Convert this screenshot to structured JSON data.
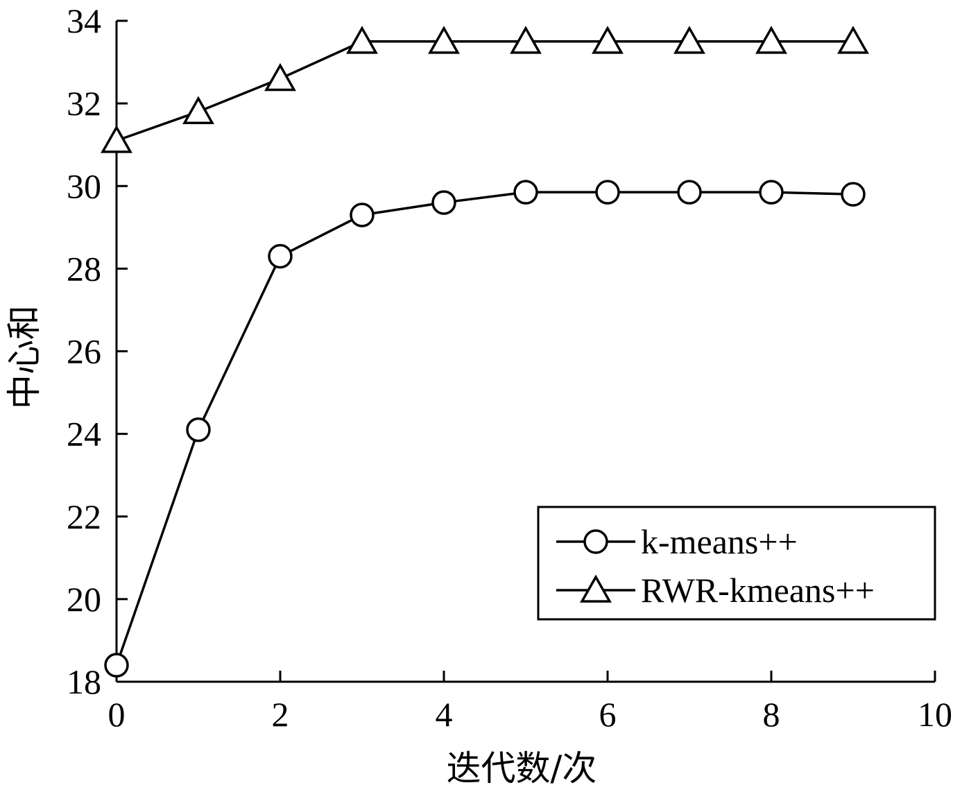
{
  "chart_data": {
    "type": "line",
    "xlabel": "迭代数/次",
    "ylabel": "中心和",
    "xlim": [
      0,
      10
    ],
    "ylim": [
      18,
      34
    ],
    "xticks": [
      "0",
      "2",
      "4",
      "6",
      "8",
      "10"
    ],
    "yticks": [
      "18",
      "20",
      "22",
      "24",
      "26",
      "28",
      "30",
      "32",
      "34"
    ],
    "grid": false,
    "legend_position": "bottom-right",
    "series": [
      {
        "name": "k-means++",
        "marker": "circle",
        "x": [
          0,
          1,
          2,
          3,
          4,
          5,
          6,
          7,
          8,
          9
        ],
        "values": [
          18.4,
          24.1,
          28.3,
          29.3,
          29.6,
          29.85,
          29.85,
          29.85,
          29.85,
          29.8
        ]
      },
      {
        "name": "RWR-kmeans++",
        "marker": "triangle",
        "x": [
          0,
          1,
          2,
          3,
          4,
          5,
          6,
          7,
          8,
          9
        ],
        "values": [
          31.1,
          31.8,
          32.6,
          33.5,
          33.5,
          33.5,
          33.5,
          33.5,
          33.5,
          33.5
        ]
      }
    ]
  },
  "colors": {
    "line": "#000000",
    "background": "#ffffff"
  }
}
